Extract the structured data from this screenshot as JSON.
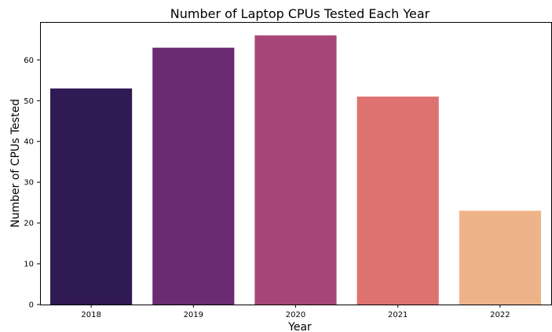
{
  "chart_data": {
    "type": "bar",
    "title": "Number of Laptop CPUs Tested Each Year",
    "xlabel": "Year",
    "ylabel": "Number of CPUs Tested",
    "categories": [
      "2018",
      "2019",
      "2020",
      "2021",
      "2022"
    ],
    "values": [
      53,
      63,
      66,
      51,
      23
    ],
    "colors": [
      "#2f1a53",
      "#6b2b73",
      "#a64676",
      "#de7270",
      "#efb389"
    ],
    "ylim": [
      0,
      69.3
    ],
    "yticks": [
      0,
      10,
      20,
      30,
      40,
      50,
      60
    ],
    "grid": false,
    "legend": "none"
  }
}
